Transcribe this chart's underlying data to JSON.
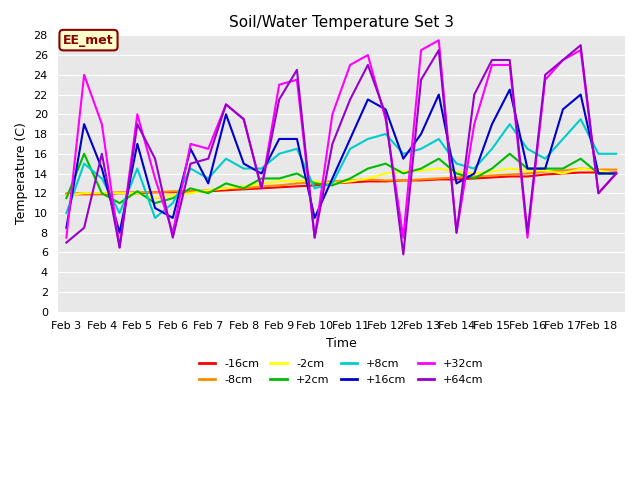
{
  "title": "Soil/Water Temperature Set 3",
  "xlabel": "Time",
  "ylabel": "Temperature (C)",
  "annotation_text": "EE_met",
  "annotation_bg": "#ffffcc",
  "annotation_border": "#8b0000",
  "plot_bg": "#e8e8e8",
  "fig_bg": "#ffffff",
  "ylim": [
    0,
    28
  ],
  "yticks": [
    0,
    2,
    4,
    6,
    8,
    10,
    12,
    14,
    16,
    18,
    20,
    22,
    24,
    26,
    28
  ],
  "x_labels": [
    "Feb 3",
    "Feb 4",
    "Feb 5",
    "Feb 6",
    "Feb 7",
    "Feb 8",
    "Feb 9",
    "Feb 10",
    "Feb 11",
    "Feb 12",
    "Feb 13",
    "Feb 14",
    "Feb 15",
    "Feb 16",
    "Feb 17",
    "Feb 18"
  ],
  "x_tick_positions": [
    0,
    2,
    4,
    6,
    8,
    10,
    12,
    14,
    16,
    18,
    20,
    22,
    24,
    26,
    28,
    30
  ],
  "n_points": 32,
  "series": {
    "-16cm": {
      "color": "#ff0000",
      "linewidth": 1.5,
      "values": [
        11.9,
        11.9,
        11.9,
        12.0,
        12.0,
        12.1,
        12.1,
        12.2,
        12.2,
        12.3,
        12.4,
        12.5,
        12.6,
        12.7,
        12.8,
        13.0,
        13.1,
        13.2,
        13.2,
        13.3,
        13.3,
        13.4,
        13.4,
        13.5,
        13.6,
        13.7,
        13.7,
        13.9,
        14.0,
        14.1,
        14.1,
        14.1
      ]
    },
    "-8cm": {
      "color": "#ff8c00",
      "linewidth": 1.5,
      "values": [
        12.0,
        12.0,
        12.0,
        12.1,
        12.1,
        12.1,
        12.2,
        12.2,
        12.3,
        12.5,
        12.5,
        12.7,
        12.8,
        13.0,
        13.1,
        13.2,
        13.3,
        13.4,
        13.3,
        13.3,
        13.4,
        13.5,
        13.6,
        13.7,
        13.8,
        13.9,
        14.0,
        14.2,
        14.3,
        14.5,
        14.4,
        14.4
      ]
    },
    "-2cm": {
      "color": "#ffff00",
      "linewidth": 1.5,
      "values": [
        11.8,
        12.0,
        12.0,
        12.0,
        12.0,
        11.5,
        11.8,
        12.0,
        12.3,
        12.5,
        12.7,
        13.0,
        13.2,
        13.3,
        13.2,
        13.0,
        13.2,
        13.5,
        14.0,
        14.2,
        14.3,
        14.5,
        14.2,
        14.0,
        14.2,
        14.5,
        14.3,
        14.3,
        14.0,
        14.5,
        14.3,
        14.0
      ]
    },
    "+2cm": {
      "color": "#00bb00",
      "linewidth": 1.5,
      "values": [
        11.5,
        16.0,
        12.0,
        11.0,
        12.2,
        11.0,
        11.5,
        12.5,
        12.0,
        13.0,
        12.5,
        13.5,
        13.5,
        14.0,
        13.0,
        12.8,
        13.5,
        14.5,
        15.0,
        14.0,
        14.5,
        15.5,
        14.0,
        13.5,
        14.5,
        16.0,
        14.5,
        14.5,
        14.5,
        15.5,
        14.0,
        14.0
      ]
    },
    "+8cm": {
      "color": "#00cccc",
      "linewidth": 1.5,
      "values": [
        10.0,
        15.0,
        13.5,
        10.0,
        14.5,
        9.5,
        11.0,
        14.5,
        13.5,
        15.5,
        14.5,
        14.5,
        16.0,
        16.5,
        12.5,
        13.0,
        16.5,
        17.5,
        18.0,
        16.0,
        16.5,
        17.5,
        15.0,
        14.5,
        16.5,
        19.0,
        16.5,
        15.5,
        17.5,
        19.5,
        16.0,
        16.0
      ]
    },
    "+16cm": {
      "color": "#0000cc",
      "linewidth": 1.5,
      "values": [
        8.5,
        19.0,
        14.5,
        8.0,
        17.0,
        10.5,
        9.5,
        16.5,
        13.0,
        20.0,
        15.0,
        14.0,
        17.5,
        17.5,
        9.5,
        13.5,
        17.5,
        21.5,
        20.5,
        15.5,
        18.0,
        22.0,
        13.0,
        14.0,
        19.0,
        22.5,
        14.5,
        14.5,
        20.5,
        22.0,
        14.0,
        14.0
      ]
    },
    "+32cm": {
      "color": "#ff00ff",
      "linewidth": 1.5,
      "values": [
        7.5,
        24.0,
        19.0,
        6.5,
        20.0,
        13.5,
        8.0,
        17.0,
        16.5,
        21.0,
        19.5,
        12.5,
        23.0,
        23.5,
        7.5,
        20.0,
        25.0,
        26.0,
        19.5,
        7.5,
        26.5,
        27.5,
        8.0,
        19.0,
        25.0,
        25.0,
        7.5,
        23.5,
        25.5,
        26.5,
        12.0,
        14.0
      ]
    },
    "+64cm": {
      "color": "#9900cc",
      "linewidth": 1.5,
      "values": [
        7.0,
        8.5,
        16.0,
        6.5,
        19.0,
        15.5,
        7.5,
        15.0,
        15.5,
        21.0,
        19.5,
        12.5,
        21.5,
        24.5,
        7.5,
        17.0,
        21.5,
        25.0,
        20.0,
        5.8,
        23.5,
        26.5,
        8.0,
        22.0,
        25.5,
        25.5,
        8.0,
        24.0,
        25.5,
        27.0,
        12.0,
        14.0
      ]
    }
  },
  "legend_order": [
    "-16cm",
    "-8cm",
    "-2cm",
    "+2cm",
    "+8cm",
    "+16cm",
    "+32cm",
    "+64cm"
  ]
}
